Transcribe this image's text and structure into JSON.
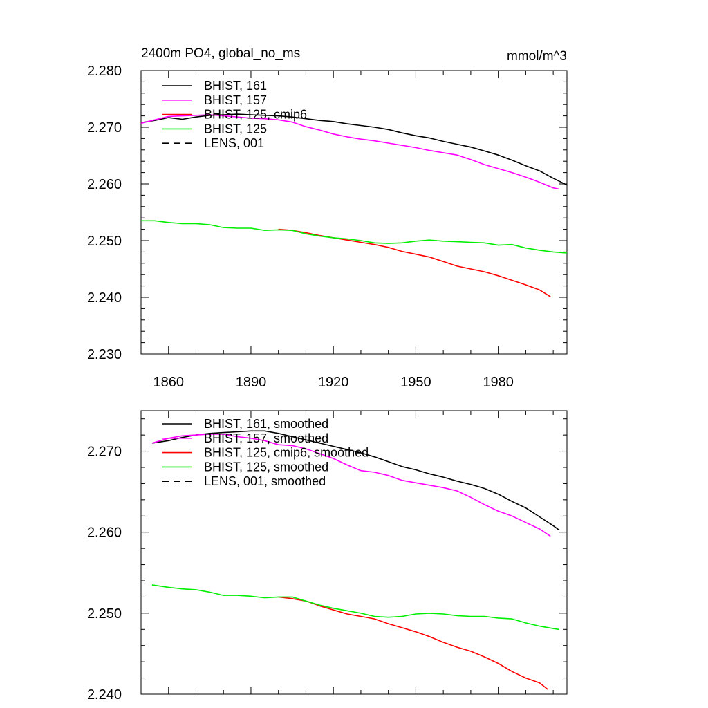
{
  "chart_data": [
    {
      "type": "line",
      "title": "2400m PO4, global_no_ms",
      "units": "mmol/m^3",
      "xlabel": "",
      "ylabel": "",
      "xlim": [
        1850,
        2005
      ],
      "ylim": [
        2.23,
        2.28
      ],
      "xticks": [
        1860,
        1890,
        1920,
        1950,
        1980
      ],
      "xtick_labels": [
        "1860",
        "1890",
        "1920",
        "1950",
        "1980"
      ],
      "yticks": [
        2.23,
        2.24,
        2.25,
        2.26,
        2.27,
        2.28
      ],
      "ytick_labels": [
        "2.230",
        "2.240",
        "2.250",
        "2.260",
        "2.270",
        "2.280"
      ],
      "legend_position": "top-left",
      "series": [
        {
          "name": "BHIST, 161",
          "color": "#000000",
          "dash": "solid",
          "x": [
            1850,
            1855,
            1860,
            1865,
            1870,
            1875,
            1880,
            1885,
            1890,
            1895,
            1900,
            1905,
            1910,
            1915,
            1920,
            1925,
            1930,
            1935,
            1940,
            1945,
            1950,
            1955,
            1960,
            1965,
            1970,
            1975,
            1980,
            1985,
            1990,
            1995,
            2000,
            2005
          ],
          "y": [
            2.2708,
            2.2712,
            2.2717,
            2.2714,
            2.2718,
            2.2721,
            2.2722,
            2.2723,
            2.2722,
            2.2721,
            2.272,
            2.2718,
            2.2715,
            2.2712,
            2.271,
            2.2706,
            2.2703,
            2.27,
            2.2696,
            2.269,
            2.2685,
            2.2681,
            2.2675,
            2.267,
            2.2665,
            2.2658,
            2.2651,
            2.2642,
            2.2632,
            2.2623,
            2.261,
            2.2598
          ]
        },
        {
          "name": "BHIST, 157",
          "color": "#ff00ff",
          "dash": "solid",
          "x": [
            1850,
            1855,
            1860,
            1865,
            1870,
            1875,
            1880,
            1885,
            1890,
            1895,
            1900,
            1905,
            1910,
            1915,
            1920,
            1925,
            1930,
            1935,
            1940,
            1945,
            1950,
            1955,
            1960,
            1965,
            1970,
            1975,
            1980,
            1985,
            1990,
            1995,
            2000,
            2002
          ],
          "y": [
            2.2707,
            2.2713,
            2.2719,
            2.272,
            2.2721,
            2.2722,
            2.272,
            2.2718,
            2.2716,
            2.2715,
            2.2713,
            2.2709,
            2.2701,
            2.2695,
            2.2688,
            2.2683,
            2.2679,
            2.2676,
            2.2672,
            2.2668,
            2.2664,
            2.2659,
            2.2655,
            2.2651,
            2.2643,
            2.2634,
            2.2627,
            2.262,
            2.2612,
            2.2603,
            2.2593,
            2.2591
          ]
        },
        {
          "name": "BHIST, 125, cmip6",
          "color": "#ff0000",
          "dash": "solid",
          "x": [
            1900,
            1905,
            1910,
            1915,
            1920,
            1925,
            1930,
            1935,
            1940,
            1945,
            1950,
            1955,
            1960,
            1965,
            1970,
            1975,
            1980,
            1985,
            1990,
            1995,
            1999
          ],
          "y": [
            2.252,
            2.2518,
            2.2514,
            2.2509,
            2.2505,
            2.2501,
            2.2497,
            2.2493,
            2.2488,
            2.2481,
            2.2476,
            2.2471,
            2.2463,
            2.2455,
            2.245,
            2.2445,
            2.2438,
            2.243,
            2.2422,
            2.2413,
            2.2401
          ]
        },
        {
          "name": "BHIST, 125",
          "color": "#00ee00",
          "dash": "solid",
          "x": [
            1850,
            1855,
            1860,
            1865,
            1870,
            1875,
            1880,
            1885,
            1890,
            1895,
            1900,
            1905,
            1910,
            1915,
            1920,
            1925,
            1930,
            1935,
            1940,
            1945,
            1950,
            1955,
            1960,
            1965,
            1970,
            1975,
            1980,
            1985,
            1990,
            1995,
            2000,
            2005
          ],
          "y": [
            2.2535,
            2.2535,
            2.2532,
            2.253,
            2.253,
            2.2528,
            2.2523,
            2.2522,
            2.2522,
            2.2518,
            2.2519,
            2.2518,
            2.2512,
            2.2508,
            2.2505,
            2.2503,
            2.25,
            2.2496,
            2.2495,
            2.2496,
            2.2499,
            2.2501,
            2.2499,
            2.2498,
            2.2497,
            2.2496,
            2.2492,
            2.2493,
            2.2487,
            2.2483,
            2.248,
            2.2478
          ]
        }
      ]
    },
    {
      "type": "line",
      "title": "",
      "xlabel": "",
      "ylabel": "",
      "xlim": [
        1850,
        2005
      ],
      "ylim": [
        2.24,
        2.275
      ],
      "xticks": [
        1860,
        1890,
        1920,
        1950,
        1980
      ],
      "yticks": [
        2.24,
        2.25,
        2.26,
        2.27
      ],
      "ytick_labels": [
        "2.240",
        "2.250",
        "2.260",
        "2.270"
      ],
      "legend_position": "top-left",
      "series": [
        {
          "name": "BHIST, 161, smoothed",
          "color": "#000000",
          "dash": "solid",
          "x": [
            1854,
            1860,
            1865,
            1870,
            1875,
            1880,
            1885,
            1890,
            1895,
            1900,
            1905,
            1910,
            1915,
            1920,
            1925,
            1930,
            1935,
            1940,
            1945,
            1950,
            1955,
            1960,
            1965,
            1970,
            1975,
            1980,
            1985,
            1990,
            1995,
            2000,
            2002
          ],
          "y": [
            2.271,
            2.2713,
            2.2717,
            2.272,
            2.2722,
            2.2723,
            2.2724,
            2.2725,
            2.2725,
            2.2722,
            2.2718,
            2.2714,
            2.271,
            2.2706,
            2.2702,
            2.2698,
            2.2693,
            2.2687,
            2.2681,
            2.2677,
            2.2672,
            2.2668,
            2.2663,
            2.2659,
            2.2654,
            2.2647,
            2.2638,
            2.263,
            2.2619,
            2.2608,
            2.2603
          ]
        },
        {
          "name": "BHIST, 157, smoothed",
          "color": "#ff00ff",
          "dash": "solid",
          "x": [
            1854,
            1860,
            1865,
            1870,
            1875,
            1880,
            1885,
            1890,
            1895,
            1900,
            1905,
            1910,
            1915,
            1920,
            1925,
            1930,
            1935,
            1940,
            1945,
            1950,
            1955,
            1960,
            1965,
            1970,
            1975,
            1980,
            1985,
            1990,
            1995,
            1999
          ],
          "y": [
            2.271,
            2.2716,
            2.2719,
            2.272,
            2.2721,
            2.2721,
            2.2718,
            2.2716,
            2.2713,
            2.2708,
            2.2707,
            2.2703,
            2.2697,
            2.2691,
            2.2683,
            2.2676,
            2.2674,
            2.267,
            2.2664,
            2.2661,
            2.2658,
            2.2655,
            2.2651,
            2.2643,
            2.2634,
            2.2626,
            2.262,
            2.2612,
            2.2604,
            2.2595
          ]
        },
        {
          "name": "BHIST, 125, cmip6, smoothed",
          "color": "#ff0000",
          "dash": "solid",
          "x": [
            1900,
            1905,
            1910,
            1915,
            1920,
            1925,
            1930,
            1935,
            1940,
            1945,
            1950,
            1955,
            1960,
            1965,
            1970,
            1975,
            1980,
            1985,
            1990,
            1995,
            1998
          ],
          "y": [
            2.252,
            2.2518,
            2.2515,
            2.2509,
            2.2504,
            2.2499,
            2.2496,
            2.2493,
            2.2487,
            2.2482,
            2.2477,
            2.2471,
            2.2464,
            2.2458,
            2.2453,
            2.2446,
            2.2438,
            2.2428,
            2.242,
            2.2414,
            2.2406
          ]
        },
        {
          "name": "BHIST, 125, smoothed",
          "color": "#00ee00",
          "dash": "solid",
          "x": [
            1854,
            1860,
            1865,
            1870,
            1875,
            1880,
            1885,
            1890,
            1895,
            1900,
            1905,
            1910,
            1915,
            1920,
            1925,
            1930,
            1935,
            1940,
            1945,
            1950,
            1955,
            1960,
            1965,
            1970,
            1975,
            1980,
            1985,
            1990,
            1995,
            2000,
            2002
          ],
          "y": [
            2.2535,
            2.2532,
            2.253,
            2.2529,
            2.2526,
            2.2522,
            2.2522,
            2.2521,
            2.2519,
            2.252,
            2.252,
            2.2515,
            2.251,
            2.2506,
            2.2503,
            2.25,
            2.2496,
            2.2495,
            2.2496,
            2.2499,
            2.25,
            2.2499,
            2.2497,
            2.2496,
            2.2496,
            2.2494,
            2.2493,
            2.2488,
            2.2484,
            2.2481,
            2.248
          ]
        }
      ]
    }
  ],
  "legends": [
    [
      {
        "label": "BHIST, 161",
        "color": "#000000",
        "dash": "solid"
      },
      {
        "label": "BHIST, 157",
        "color": "#ff00ff",
        "dash": "solid"
      },
      {
        "label": "BHIST, 125, cmip6",
        "color": "#ff0000",
        "dash": "solid"
      },
      {
        "label": "BHIST, 125",
        "color": "#00ee00",
        "dash": "solid"
      },
      {
        "label": "LENS, 001",
        "color": "#000000",
        "dash": "dashed"
      }
    ],
    [
      {
        "label": "BHIST, 161, smoothed",
        "color": "#000000",
        "dash": "solid"
      },
      {
        "label": "BHIST, 157, smoothed",
        "color": "#ff00ff",
        "dash": "solid"
      },
      {
        "label": "BHIST, 125, cmip6, smoothed",
        "color": "#ff0000",
        "dash": "solid"
      },
      {
        "label": "BHIST, 125, smoothed",
        "color": "#00ee00",
        "dash": "solid"
      },
      {
        "label": "LENS, 001, smoothed",
        "color": "#000000",
        "dash": "dashed"
      }
    ]
  ]
}
